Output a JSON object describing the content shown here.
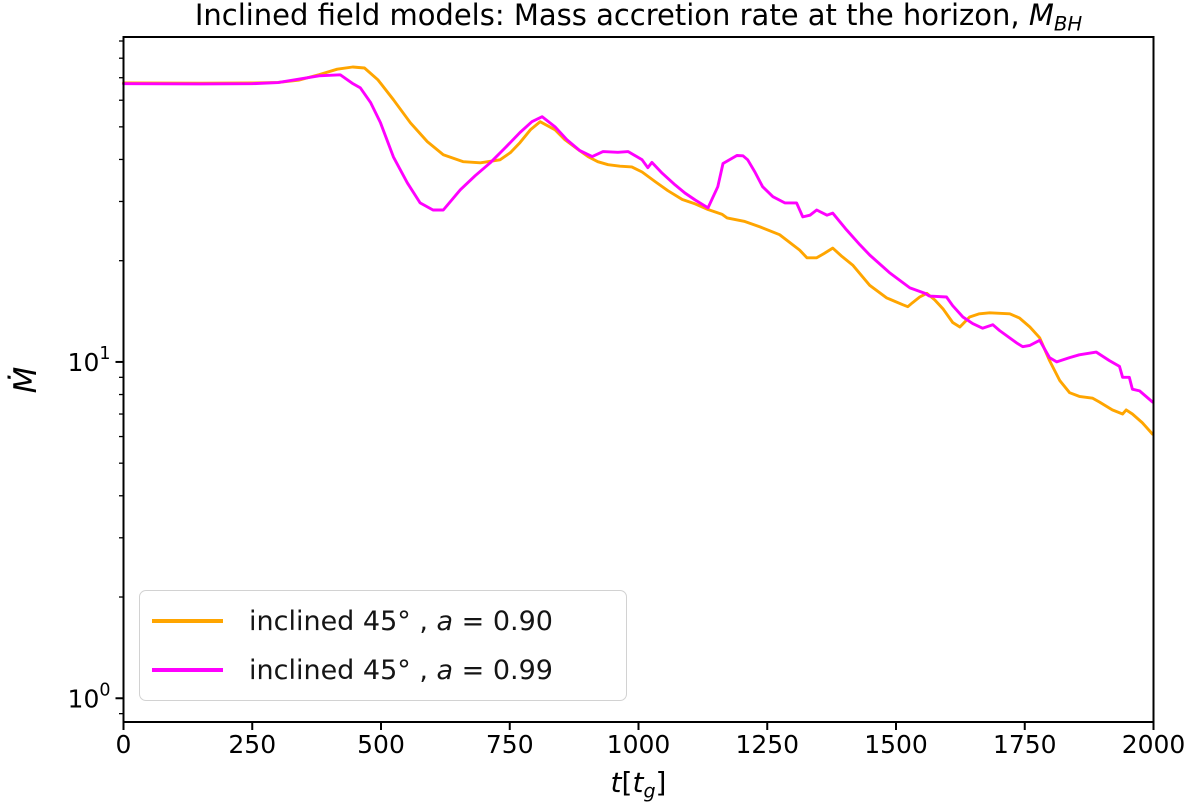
{
  "figure": {
    "title": {
      "prefix": "Inclined field models: Mass accretion rate at the horizon, ",
      "var": "M",
      "sub": "BH"
    }
  },
  "axes": {
    "ylabel": "Ṁ",
    "xlabel": {
      "t1": "t",
      "lb": "[",
      "t2": "t",
      "sub": "g",
      "rb": "]"
    },
    "x_ticks": [
      0,
      250,
      500,
      750,
      1000,
      1250,
      1500,
      1750,
      2000
    ],
    "y_major_ticks": [
      {
        "value": 1,
        "base": "10",
        "exp": "0"
      },
      {
        "value": 10,
        "base": "10",
        "exp": "1"
      }
    ],
    "y_minor_ticks": [
      0.9,
      2,
      3,
      4,
      5,
      6,
      7,
      8,
      9,
      20,
      30,
      40,
      50,
      60,
      70,
      80,
      90
    ],
    "xlim": [
      0,
      2000
    ],
    "ylim": [
      0.85,
      92.5
    ],
    "yscale": "log",
    "frame_color": "#000000"
  },
  "legend": {
    "position": "lower left",
    "entries": [
      {
        "prefix": "inclined 45° , ",
        "var": "a",
        "rest": " = 0.90"
      },
      {
        "prefix": "inclined 45° , ",
        "var": "a",
        "rest": " = 0.99"
      }
    ]
  },
  "chart_data": {
    "type": "line",
    "title": "Inclined field models: Mass accretion rate at the horizon, Ṁ_BH",
    "xlabel": "t[t_g]",
    "ylabel": "Ṁ",
    "xlim": [
      0,
      2000
    ],
    "ylim": [
      0.85,
      92.5
    ],
    "yscale": "log",
    "grid": false,
    "legend_position": "lower left",
    "series": [
      {
        "name": "inclined 45°, a = 0.90",
        "color": "#FFA500",
        "points": [
          [
            0,
            67.5
          ],
          [
            150,
            67.4
          ],
          [
            250,
            67.5
          ],
          [
            300,
            67.8
          ],
          [
            340,
            68.8
          ],
          [
            380,
            71.5
          ],
          [
            415,
            74.2
          ],
          [
            445,
            75.3
          ],
          [
            468,
            74.8
          ],
          [
            494,
            69.0
          ],
          [
            524,
            60.2
          ],
          [
            557,
            51.4
          ],
          [
            590,
            45.2
          ],
          [
            621,
            41.3
          ],
          [
            660,
            39.4
          ],
          [
            693,
            39.1
          ],
          [
            731,
            39.9
          ],
          [
            751,
            41.9
          ],
          [
            770,
            44.9
          ],
          [
            790,
            49.0
          ],
          [
            809,
            51.8
          ],
          [
            838,
            49.0
          ],
          [
            857,
            45.8
          ],
          [
            883,
            42.8
          ],
          [
            902,
            40.8
          ],
          [
            921,
            39.4
          ],
          [
            941,
            38.6
          ],
          [
            964,
            38.2
          ],
          [
            987,
            38.0
          ],
          [
            1007,
            36.7
          ],
          [
            1032,
            34.4
          ],
          [
            1057,
            32.3
          ],
          [
            1085,
            30.4
          ],
          [
            1110,
            29.5
          ],
          [
            1135,
            28.4
          ],
          [
            1162,
            27.5
          ],
          [
            1172,
            26.8
          ],
          [
            1205,
            26.2
          ],
          [
            1236,
            25.2
          ],
          [
            1274,
            23.9
          ],
          [
            1313,
            21.5
          ],
          [
            1327,
            20.4
          ],
          [
            1346,
            20.4
          ],
          [
            1360,
            21.0
          ],
          [
            1377,
            21.8
          ],
          [
            1395,
            20.6
          ],
          [
            1416,
            19.4
          ],
          [
            1449,
            16.9
          ],
          [
            1482,
            15.5
          ],
          [
            1513,
            14.8
          ],
          [
            1523,
            14.6
          ],
          [
            1532,
            15.0
          ],
          [
            1546,
            15.6
          ],
          [
            1560,
            16.0
          ],
          [
            1575,
            15.3
          ],
          [
            1591,
            14.4
          ],
          [
            1610,
            13.1
          ],
          [
            1624,
            12.7
          ],
          [
            1643,
            13.6
          ],
          [
            1662,
            13.9
          ],
          [
            1682,
            14.0
          ],
          [
            1721,
            13.9
          ],
          [
            1740,
            13.5
          ],
          [
            1760,
            12.7
          ],
          [
            1779,
            11.8
          ],
          [
            1798,
            10.1
          ],
          [
            1818,
            8.8
          ],
          [
            1837,
            8.1
          ],
          [
            1856,
            7.9
          ],
          [
            1882,
            7.8
          ],
          [
            1895,
            7.6
          ],
          [
            1920,
            7.2
          ],
          [
            1940,
            7.0
          ],
          [
            1947,
            7.2
          ],
          [
            1959,
            7.0
          ],
          [
            1978,
            6.6
          ],
          [
            1998,
            6.1
          ]
        ]
      },
      {
        "name": "inclined 45°, a = 0.99",
        "color": "#FF00FF",
        "points": [
          [
            0,
            67.2
          ],
          [
            150,
            67.1
          ],
          [
            250,
            67.2
          ],
          [
            300,
            67.7
          ],
          [
            340,
            69.3
          ],
          [
            380,
            70.9
          ],
          [
            421,
            71.4
          ],
          [
            444,
            67.4
          ],
          [
            460,
            65.3
          ],
          [
            480,
            59.0
          ],
          [
            499,
            51.4
          ],
          [
            524,
            40.7
          ],
          [
            551,
            34.1
          ],
          [
            576,
            29.7
          ],
          [
            601,
            28.3
          ],
          [
            621,
            28.3
          ],
          [
            654,
            32.5
          ],
          [
            683,
            35.8
          ],
          [
            712,
            39.1
          ],
          [
            741,
            43.3
          ],
          [
            770,
            48.1
          ],
          [
            793,
            51.8
          ],
          [
            813,
            53.6
          ],
          [
            838,
            50.0
          ],
          [
            861,
            45.8
          ],
          [
            886,
            42.5
          ],
          [
            910,
            40.8
          ],
          [
            931,
            42.2
          ],
          [
            960,
            42.0
          ],
          [
            980,
            42.2
          ],
          [
            1007,
            39.9
          ],
          [
            1018,
            37.8
          ],
          [
            1026,
            39.2
          ],
          [
            1046,
            36.4
          ],
          [
            1071,
            33.6
          ],
          [
            1090,
            31.8
          ],
          [
            1110,
            30.3
          ],
          [
            1135,
            28.7
          ],
          [
            1154,
            33.2
          ],
          [
            1164,
            38.9
          ],
          [
            1191,
            41.1
          ],
          [
            1203,
            41.0
          ],
          [
            1212,
            39.9
          ],
          [
            1226,
            36.7
          ],
          [
            1241,
            33.2
          ],
          [
            1261,
            31.0
          ],
          [
            1284,
            29.7
          ],
          [
            1307,
            29.7
          ],
          [
            1319,
            27.0
          ],
          [
            1333,
            27.3
          ],
          [
            1346,
            28.3
          ],
          [
            1366,
            27.3
          ],
          [
            1377,
            27.7
          ],
          [
            1391,
            26.1
          ],
          [
            1404,
            24.7
          ],
          [
            1430,
            22.3
          ],
          [
            1449,
            20.8
          ],
          [
            1488,
            18.4
          ],
          [
            1527,
            16.6
          ],
          [
            1556,
            16.0
          ],
          [
            1565,
            15.7
          ],
          [
            1598,
            15.6
          ],
          [
            1610,
            14.7
          ],
          [
            1630,
            13.6
          ],
          [
            1649,
            13.0
          ],
          [
            1668,
            12.6
          ],
          [
            1688,
            12.9
          ],
          [
            1701,
            12.4
          ],
          [
            1734,
            11.4
          ],
          [
            1746,
            11.1
          ],
          [
            1760,
            11.2
          ],
          [
            1779,
            11.6
          ],
          [
            1798,
            10.3
          ],
          [
            1812,
            10.0
          ],
          [
            1837,
            10.3
          ],
          [
            1856,
            10.5
          ],
          [
            1889,
            10.7
          ],
          [
            1914,
            10.1
          ],
          [
            1934,
            9.7
          ],
          [
            1940,
            9.0
          ],
          [
            1953,
            9.0
          ],
          [
            1959,
            8.3
          ],
          [
            1973,
            8.2
          ],
          [
            1998,
            7.6
          ]
        ]
      }
    ]
  }
}
